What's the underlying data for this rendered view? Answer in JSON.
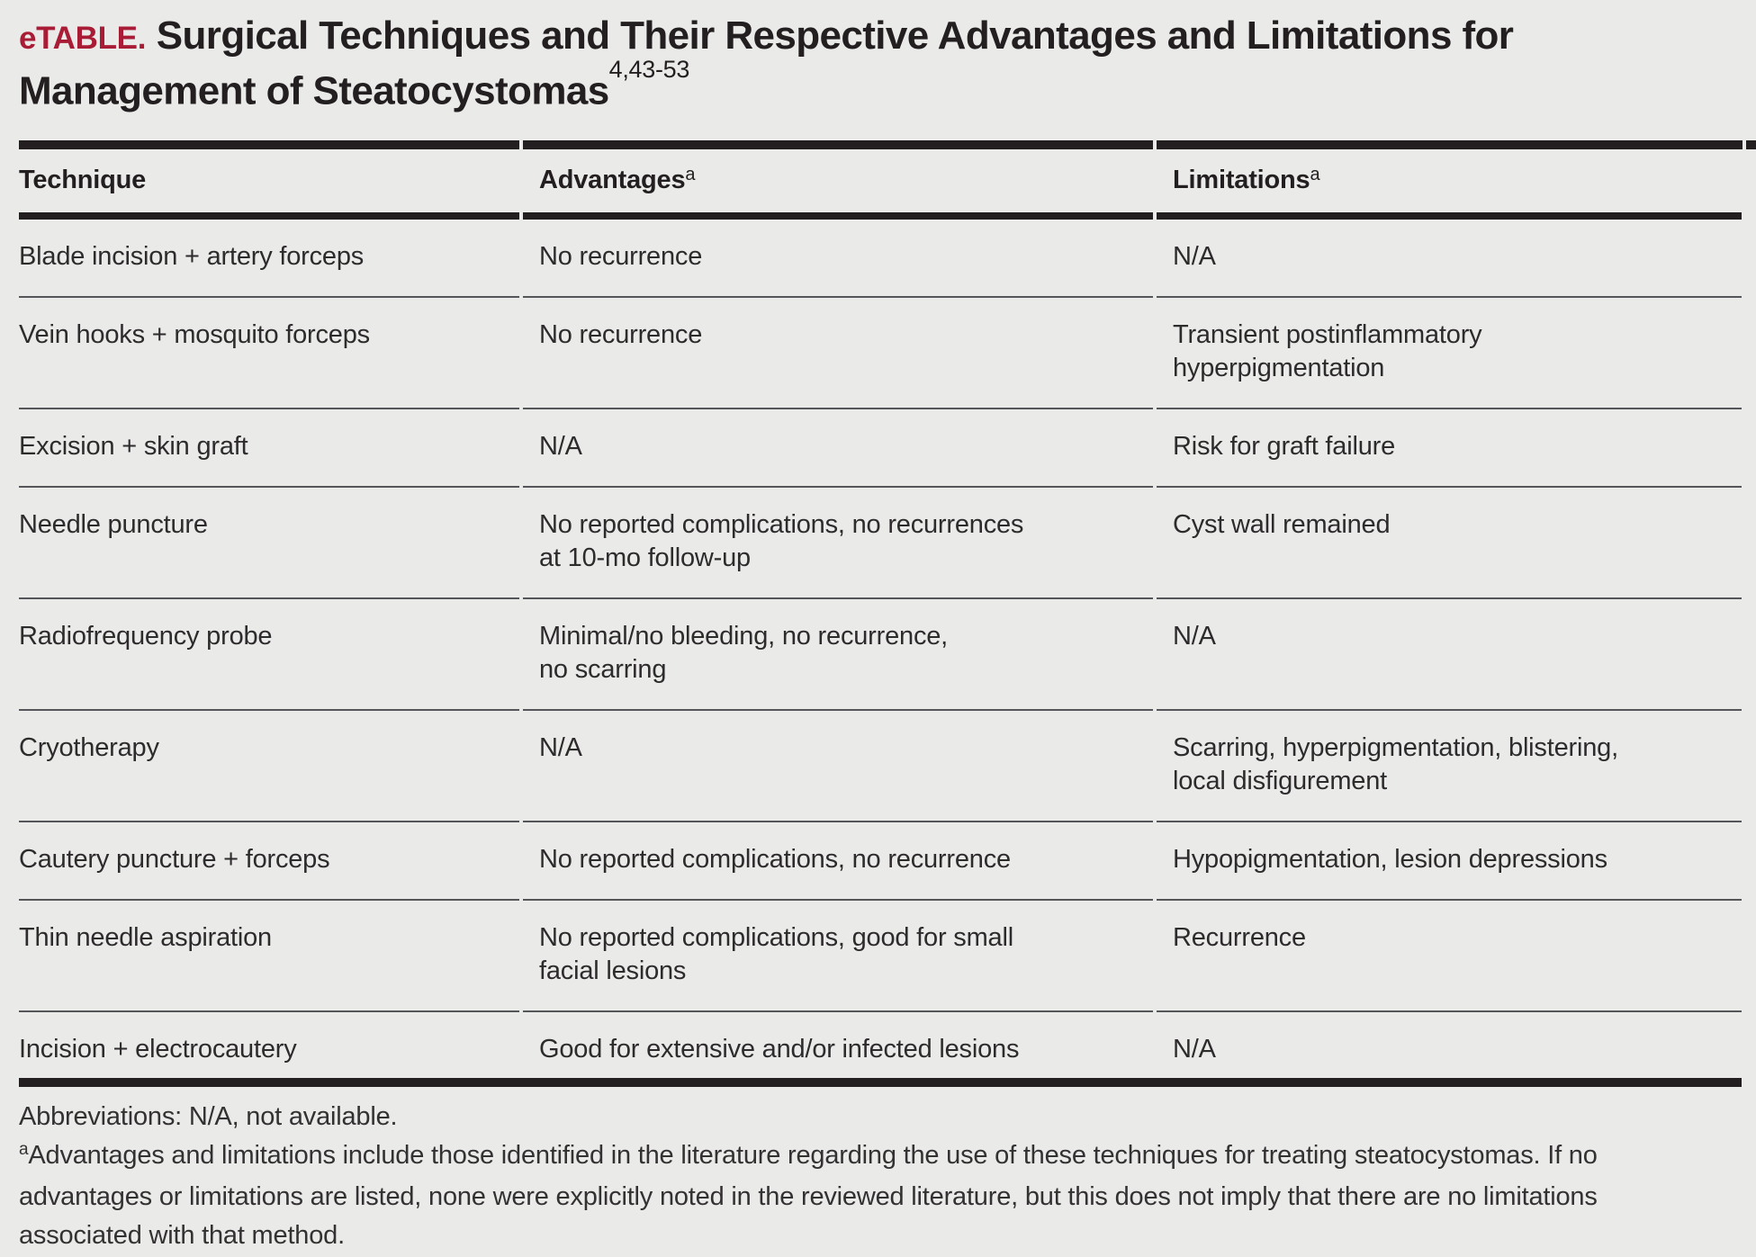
{
  "title": {
    "label": "eTABLE.",
    "text": "Surgical Techniques and Their Respective Advantages and Limitations for\nManagement of Steatocystomas",
    "reference": "4,43-53"
  },
  "table": {
    "columns": [
      {
        "label": "Technique",
        "superscript": ""
      },
      {
        "label": "Advantages",
        "superscript": "a"
      },
      {
        "label": "Limitations",
        "superscript": "a"
      }
    ],
    "rows": [
      {
        "technique": "Blade incision + artery forceps",
        "advantages": "No recurrence",
        "limitations": "N/A"
      },
      {
        "technique": "Vein hooks + mosquito forceps",
        "advantages": "No recurrence",
        "limitations": "Transient postinflammatory\nhyperpigmentation"
      },
      {
        "technique": "Excision + skin graft",
        "advantages": "N/A",
        "limitations": "Risk for graft failure"
      },
      {
        "technique": "Needle puncture",
        "advantages": "No reported complications, no recurrences\nat 10-mo follow-up",
        "limitations": "Cyst wall remained"
      },
      {
        "technique": "Radiofrequency probe",
        "advantages": "Minimal/no bleeding, no recurrence,\nno scarring",
        "limitations": "N/A"
      },
      {
        "technique": "Cryotherapy",
        "advantages": "N/A",
        "limitations": "Scarring, hyperpigmentation, blistering,\nlocal disfigurement"
      },
      {
        "technique": "Cautery puncture + forceps",
        "advantages": "No reported complications, no recurrence",
        "limitations": "Hypopigmentation, lesion depressions"
      },
      {
        "technique": "Thin needle aspiration",
        "advantages": "No reported complications, good for small\nfacial lesions",
        "limitations": "Recurrence"
      },
      {
        "technique": "Incision + electrocautery",
        "advantages": "Good for extensive and/or infected lesions",
        "limitations": "N/A"
      }
    ]
  },
  "footnotes": {
    "abbreviations": "Abbreviations: N/A, not available.",
    "note_marker": "a",
    "note_text": "Advantages and limitations include those identified in the literature regarding the use of these techniques for treating steatocystomas. If no\nadvantages or limitations are listed, none were explicitly noted in the reviewed literature, but this does not imply that there are no limitations\nassociated with that method."
  },
  "colors": {
    "accent_red": "#a81c35",
    "background": "#eaeae9",
    "rule_black": "#231f20",
    "divider_gray": "#55565a"
  }
}
